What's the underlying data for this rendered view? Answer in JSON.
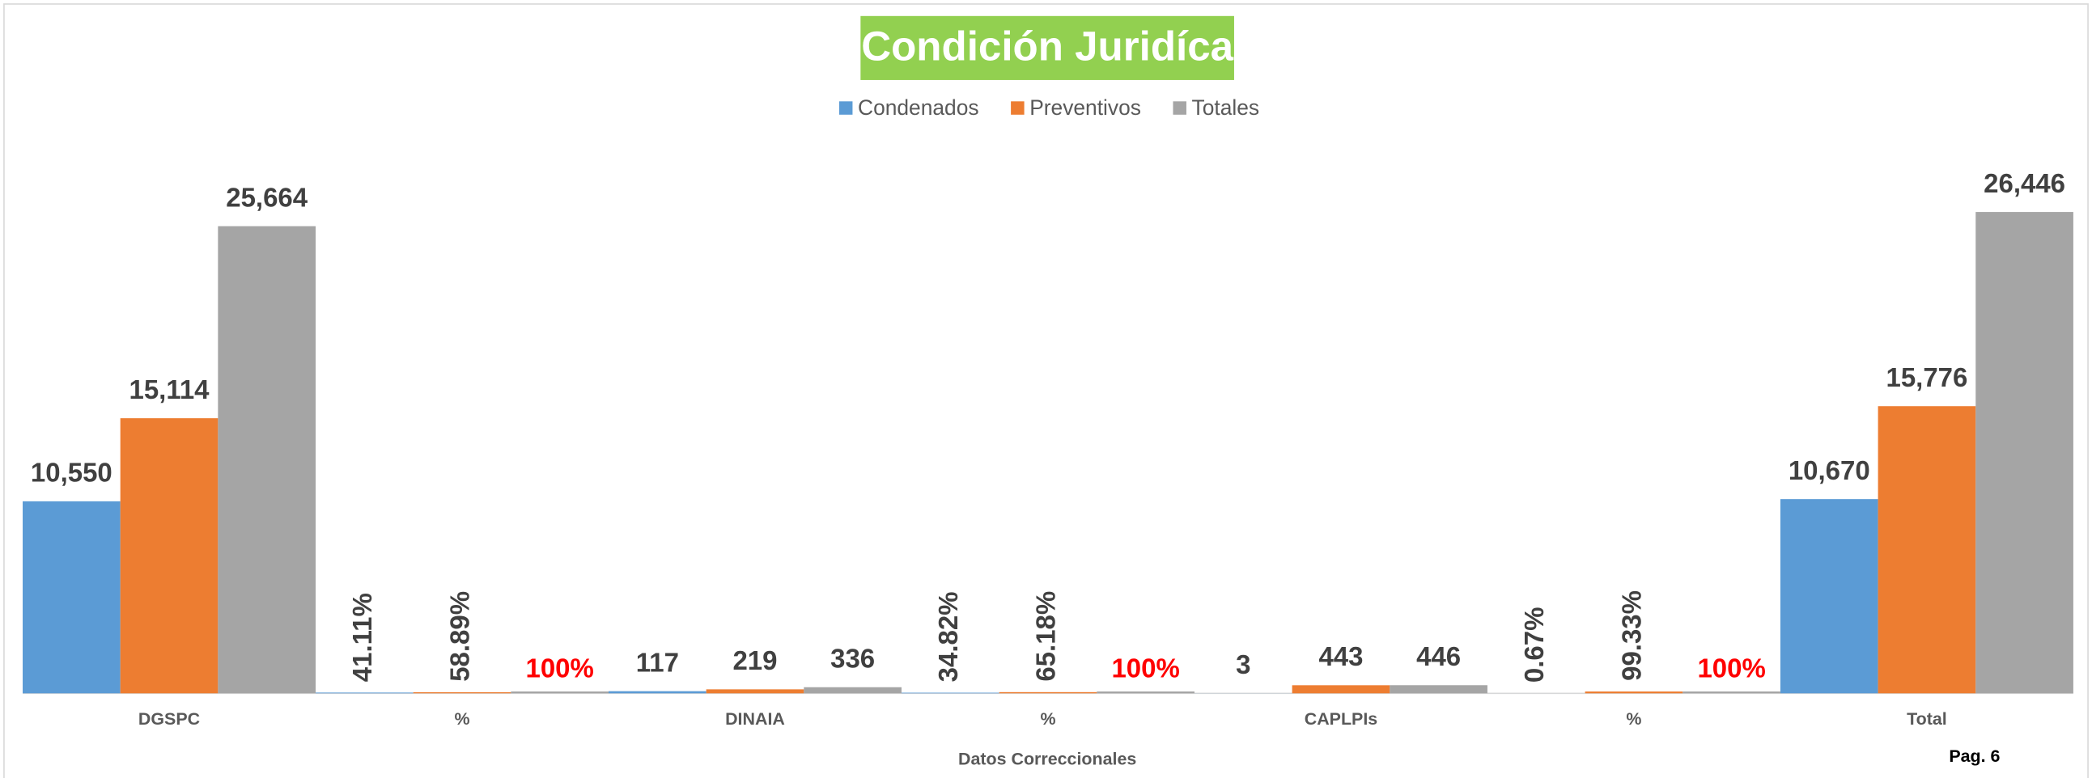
{
  "chart_data": {
    "type": "bar",
    "title": "Condición Juridíca",
    "x_label": "Datos  Correccionales",
    "page_label": "Pag. 6",
    "categories": [
      "DGSPC",
      "%",
      "DINAIA",
      "%",
      "CAPLPIs",
      "%",
      "Total"
    ],
    "series": [
      {
        "name": "Condenados",
        "color": "#5b9bd5",
        "values": [
          10550,
          41.11,
          117,
          34.82,
          3,
          0.67,
          10670
        ],
        "value_labels": [
          "10,550",
          "41.11%",
          "117",
          "34.82%",
          "3",
          "0.67%",
          "10,670"
        ]
      },
      {
        "name": "Preventivos",
        "color": "#ed7d31",
        "values": [
          15114,
          58.89,
          219,
          65.18,
          443,
          99.33,
          15776
        ],
        "value_labels": [
          "15,114",
          "58.89%",
          "219",
          "65.18%",
          "443",
          "99.33%",
          "15,776"
        ]
      },
      {
        "name": "Totales",
        "color": "#a5a5a5",
        "values": [
          25664,
          100,
          336,
          100,
          446,
          100,
          26446
        ],
        "value_labels": [
          "25,664",
          "100%",
          "336",
          "100%",
          "446",
          "100%",
          "26,446"
        ],
        "label_colors": [
          null,
          "#ff0000",
          null,
          "#ff0000",
          null,
          "#ff0000",
          null
        ]
      }
    ],
    "ylim": [
      0,
      29300
    ],
    "title_background": "#92d050",
    "legend": "top"
  }
}
